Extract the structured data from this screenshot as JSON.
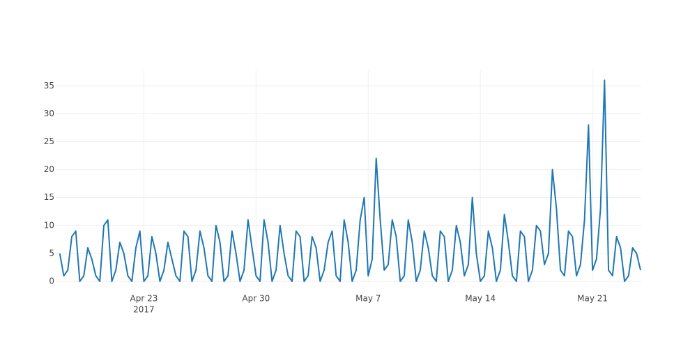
{
  "chart_data": {
    "type": "line",
    "x_year_label": "2017",
    "x": [
      "2017-04-17 18:00",
      "2017-04-18 00:00",
      "2017-04-18 06:00",
      "2017-04-18 12:00",
      "2017-04-18 18:00",
      "2017-04-19 00:00",
      "2017-04-19 06:00",
      "2017-04-19 12:00",
      "2017-04-19 18:00",
      "2017-04-20 00:00",
      "2017-04-20 06:00",
      "2017-04-20 12:00",
      "2017-04-20 18:00",
      "2017-04-21 00:00",
      "2017-04-21 06:00",
      "2017-04-21 12:00",
      "2017-04-21 18:00",
      "2017-04-22 00:00",
      "2017-04-22 06:00",
      "2017-04-22 12:00",
      "2017-04-22 18:00",
      "2017-04-23 00:00",
      "2017-04-23 06:00",
      "2017-04-23 12:00",
      "2017-04-23 18:00",
      "2017-04-24 00:00",
      "2017-04-24 06:00",
      "2017-04-24 12:00",
      "2017-04-24 18:00",
      "2017-04-25 00:00",
      "2017-04-25 06:00",
      "2017-04-25 12:00",
      "2017-04-25 18:00",
      "2017-04-26 00:00",
      "2017-04-26 06:00",
      "2017-04-26 12:00",
      "2017-04-26 18:00",
      "2017-04-27 00:00",
      "2017-04-27 06:00",
      "2017-04-27 12:00",
      "2017-04-27 18:00",
      "2017-04-28 00:00",
      "2017-04-28 06:00",
      "2017-04-28 12:00",
      "2017-04-28 18:00",
      "2017-04-29 00:00",
      "2017-04-29 06:00",
      "2017-04-29 12:00",
      "2017-04-29 18:00",
      "2017-04-30 00:00",
      "2017-04-30 06:00",
      "2017-04-30 12:00",
      "2017-04-30 18:00",
      "2017-05-01 00:00",
      "2017-05-01 06:00",
      "2017-05-01 12:00",
      "2017-05-01 18:00",
      "2017-05-02 00:00",
      "2017-05-02 06:00",
      "2017-05-02 12:00",
      "2017-05-02 18:00",
      "2017-05-03 00:00",
      "2017-05-03 06:00",
      "2017-05-03 12:00",
      "2017-05-03 18:00",
      "2017-05-04 00:00",
      "2017-05-04 06:00",
      "2017-05-04 12:00",
      "2017-05-04 18:00",
      "2017-05-05 00:00",
      "2017-05-05 06:00",
      "2017-05-05 12:00",
      "2017-05-05 18:00",
      "2017-05-06 00:00",
      "2017-05-06 06:00",
      "2017-05-06 12:00",
      "2017-05-06 18:00",
      "2017-05-07 00:00",
      "2017-05-07 06:00",
      "2017-05-07 12:00",
      "2017-05-07 18:00",
      "2017-05-08 00:00",
      "2017-05-08 06:00",
      "2017-05-08 12:00",
      "2017-05-08 18:00",
      "2017-05-09 00:00",
      "2017-05-09 06:00",
      "2017-05-09 12:00",
      "2017-05-09 18:00",
      "2017-05-10 00:00",
      "2017-05-10 06:00",
      "2017-05-10 12:00",
      "2017-05-10 18:00",
      "2017-05-11 00:00",
      "2017-05-11 06:00",
      "2017-05-11 12:00",
      "2017-05-11 18:00",
      "2017-05-12 00:00",
      "2017-05-12 06:00",
      "2017-05-12 12:00",
      "2017-05-12 18:00",
      "2017-05-13 00:00",
      "2017-05-13 06:00",
      "2017-05-13 12:00",
      "2017-05-13 18:00",
      "2017-05-14 00:00",
      "2017-05-14 06:00",
      "2017-05-14 12:00",
      "2017-05-14 18:00",
      "2017-05-15 00:00",
      "2017-05-15 06:00",
      "2017-05-15 12:00",
      "2017-05-15 18:00",
      "2017-05-16 00:00",
      "2017-05-16 06:00",
      "2017-05-16 12:00",
      "2017-05-16 18:00",
      "2017-05-17 00:00",
      "2017-05-17 06:00",
      "2017-05-17 12:00",
      "2017-05-17 18:00",
      "2017-05-18 00:00",
      "2017-05-18 06:00",
      "2017-05-18 12:00",
      "2017-05-18 18:00",
      "2017-05-19 00:00",
      "2017-05-19 06:00",
      "2017-05-19 12:00",
      "2017-05-19 18:00",
      "2017-05-20 00:00",
      "2017-05-20 06:00",
      "2017-05-20 12:00",
      "2017-05-20 18:00",
      "2017-05-21 00:00",
      "2017-05-21 06:00",
      "2017-05-21 12:00",
      "2017-05-21 18:00",
      "2017-05-22 00:00",
      "2017-05-22 06:00",
      "2017-05-22 12:00",
      "2017-05-22 18:00",
      "2017-05-23 00:00",
      "2017-05-23 06:00",
      "2017-05-23 12:00",
      "2017-05-23 18:00",
      "2017-05-24 00:00"
    ],
    "series": [
      {
        "color": "#1f77b4",
        "values": [
          5,
          1,
          2,
          8,
          9,
          0,
          1,
          6,
          4,
          1,
          0,
          10,
          11,
          0,
          2,
          7,
          5,
          1,
          0,
          6,
          9,
          0,
          1,
          8,
          5,
          0,
          2,
          7,
          4,
          1,
          0,
          9,
          8,
          0,
          2,
          9,
          6,
          1,
          0,
          10,
          7,
          0,
          1,
          9,
          5,
          0,
          2,
          11,
          6,
          1,
          0,
          11,
          7,
          0,
          2,
          10,
          5,
          1,
          0,
          9,
          8,
          0,
          1,
          8,
          6,
          0,
          2,
          7,
          9,
          1,
          0,
          11,
          7,
          0,
          2,
          11,
          15,
          1,
          4,
          22,
          11,
          2,
          3,
          11,
          8,
          0,
          1,
          11,
          7,
          0,
          2,
          9,
          6,
          1,
          0,
          9,
          8,
          0,
          2,
          10,
          7,
          1,
          3,
          15,
          5,
          0,
          1,
          9,
          6,
          0,
          2,
          12,
          7,
          1,
          0,
          9,
          8,
          0,
          2,
          10,
          9,
          3,
          5,
          20,
          13,
          2,
          1,
          9,
          8,
          1,
          3,
          11,
          28,
          2,
          4,
          13,
          36,
          2,
          1,
          8,
          6,
          0,
          1,
          6,
          5,
          2
        ]
      }
    ],
    "xlim": [
      "2017-04-17 12:00",
      "2017-05-24 01:00"
    ],
    "xticks": [
      {
        "value": "2017-04-23 00:00",
        "label": "Apr 23"
      },
      {
        "value": "2017-04-30 00:00",
        "label": "Apr 30"
      },
      {
        "value": "2017-05-07 00:00",
        "label": "May 7"
      },
      {
        "value": "2017-05-14 00:00",
        "label": "May 14"
      },
      {
        "value": "2017-05-21 00:00",
        "label": "May 21"
      }
    ],
    "ylim": [
      0,
      37.9
    ],
    "yticks": [
      0,
      5,
      10,
      15,
      20,
      25,
      30,
      35
    ],
    "grid": true
  }
}
